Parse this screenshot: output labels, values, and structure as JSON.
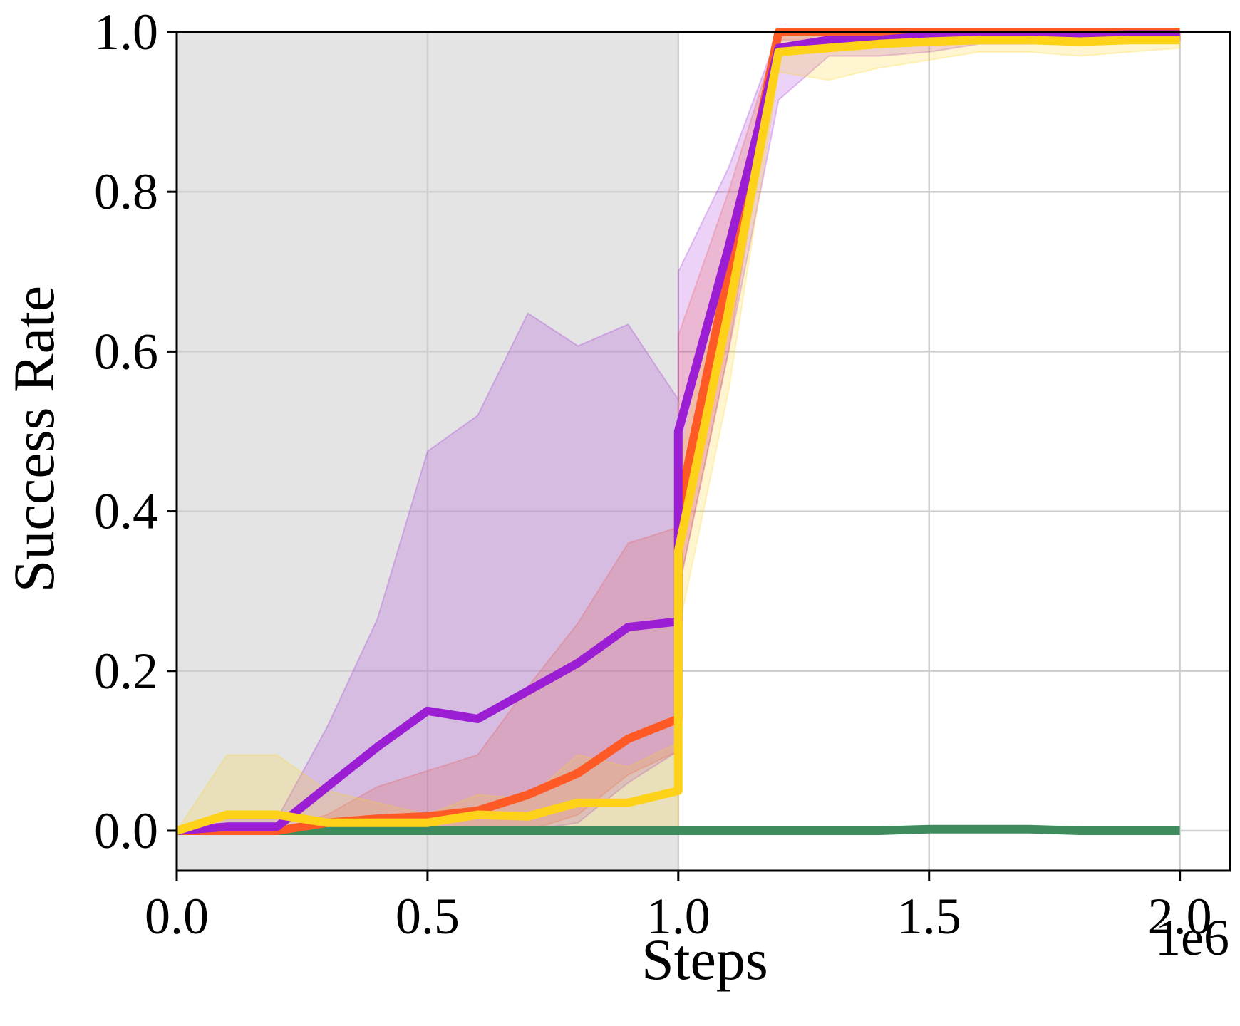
{
  "chart_data": {
    "type": "line",
    "xlabel": "Steps",
    "ylabel": "Success Rate",
    "x_offset_label": "1e6",
    "xlim": [
      0.0,
      2.1
    ],
    "ylim": [
      -0.05,
      1.0
    ],
    "xticks": [
      "0.0",
      "0.5",
      "1.0",
      "1.5",
      "2.0"
    ],
    "yticks": [
      "0.0",
      "0.2",
      "0.4",
      "0.6",
      "0.8",
      "1.0"
    ],
    "grid": true,
    "legend": "none",
    "shaded_region": {
      "x_start": 0.0,
      "x_end": 1.0,
      "color": "#e4e4e4"
    },
    "series": [
      {
        "color": "#3e8c5e",
        "x": [
          0,
          0.1,
          0.2,
          0.3,
          0.4,
          0.5,
          0.6,
          0.7,
          0.8,
          0.9,
          1.0,
          1.1,
          1.2,
          1.3,
          1.4,
          1.5,
          1.6,
          1.7,
          1.8,
          1.9,
          2.0
        ],
        "y": [
          0,
          0,
          0,
          0,
          0,
          0,
          0,
          0,
          0,
          0,
          0,
          0,
          0,
          0,
          0,
          0.002,
          0.002,
          0.002,
          0,
          0,
          0
        ],
        "lower": [
          0,
          0,
          0,
          0,
          0,
          0,
          0,
          0,
          0,
          0,
          0,
          0,
          0,
          0,
          0,
          0,
          0,
          0,
          0,
          0,
          0
        ],
        "upper": [
          0,
          0,
          0,
          0,
          0,
          0,
          0,
          0,
          0,
          0,
          0,
          0,
          0,
          0,
          0,
          0.004,
          0.004,
          0.004,
          0,
          0,
          0
        ]
      },
      {
        "color": "#ff5a26",
        "x": [
          0,
          0.1,
          0.2,
          0.3,
          0.4,
          0.5,
          0.6,
          0.7,
          0.8,
          0.9,
          1.0,
          1.0,
          1.1,
          1.2,
          1.3,
          1.4,
          1.5,
          1.6,
          1.7,
          1.8,
          1.9,
          2.0
        ],
        "y": [
          0,
          0,
          0,
          0.01,
          0.015,
          0.018,
          0.025,
          0.045,
          0.072,
          0.115,
          0.14,
          0.4,
          0.7,
          1.0,
          1.0,
          1.0,
          1.0,
          1.0,
          1.0,
          1.0,
          1.0,
          1.0
        ],
        "lower": [
          0,
          0,
          0,
          0,
          0,
          0,
          0,
          0,
          0.02,
          0.07,
          0.1,
          0.3,
          0.6,
          0.99,
          0.99,
          0.99,
          0.99,
          0.99,
          0.99,
          0.99,
          0.99,
          0.99
        ],
        "upper": [
          0,
          0,
          0,
          0.02,
          0.055,
          0.075,
          0.095,
          0.18,
          0.26,
          0.36,
          0.38,
          0.62,
          0.8,
          1.0,
          1.0,
          1.0,
          1.0,
          1.0,
          1.0,
          1.0,
          1.0,
          1.0
        ]
      },
      {
        "color": "#9b1ed4",
        "x": [
          0,
          0.1,
          0.2,
          0.3,
          0.4,
          0.5,
          0.6,
          0.7,
          0.8,
          0.9,
          1.0,
          1.0,
          1.1,
          1.2,
          1.3,
          1.4,
          1.5,
          1.6,
          1.7,
          1.8,
          1.9,
          2.0
        ],
        "y": [
          0,
          0.005,
          0.005,
          0.055,
          0.105,
          0.15,
          0.14,
          0.175,
          0.21,
          0.255,
          0.262,
          0.5,
          0.73,
          0.98,
          0.99,
          0.99,
          0.995,
          0.995,
          0.995,
          0.995,
          0.997,
          0.997
        ],
        "lower": [
          0,
          0,
          0,
          0,
          0,
          0,
          0,
          0,
          0.01,
          0.06,
          0.1,
          0.3,
          0.6,
          0.915,
          0.97,
          0.97,
          0.975,
          0.985,
          0.985,
          0.99,
          0.99,
          0.99
        ],
        "upper": [
          0,
          0.015,
          0.015,
          0.13,
          0.265,
          0.475,
          0.52,
          0.648,
          0.607,
          0.634,
          0.54,
          0.7,
          0.83,
          1.0,
          1.0,
          1.0,
          1.0,
          1.0,
          1.0,
          1.0,
          1.0,
          1.0
        ]
      },
      {
        "color": "#ffd21a",
        "x": [
          0,
          0.1,
          0.2,
          0.3,
          0.4,
          0.5,
          0.6,
          0.7,
          0.8,
          0.9,
          1.0,
          1.0,
          1.1,
          1.2,
          1.3,
          1.4,
          1.5,
          1.6,
          1.7,
          1.8,
          1.9,
          2.0
        ],
        "y": [
          0,
          0.02,
          0.02,
          0.01,
          0.01,
          0.01,
          0.02,
          0.018,
          0.035,
          0.035,
          0.05,
          0.35,
          0.65,
          0.975,
          0.98,
          0.985,
          0.988,
          0.99,
          0.99,
          0.988,
          0.99,
          0.99
        ],
        "lower": [
          0,
          0,
          0,
          0,
          0,
          0,
          0,
          0,
          0,
          0,
          0,
          0.25,
          0.55,
          0.95,
          0.94,
          0.955,
          0.965,
          0.975,
          0.975,
          0.97,
          0.975,
          0.98
        ],
        "upper": [
          0,
          0.095,
          0.095,
          0.05,
          0.035,
          0.02,
          0.045,
          0.04,
          0.095,
          0.08,
          0.11,
          0.45,
          0.75,
          1.0,
          1.0,
          1.0,
          1.0,
          1.0,
          1.0,
          1.0,
          1.0,
          1.0
        ]
      }
    ]
  }
}
